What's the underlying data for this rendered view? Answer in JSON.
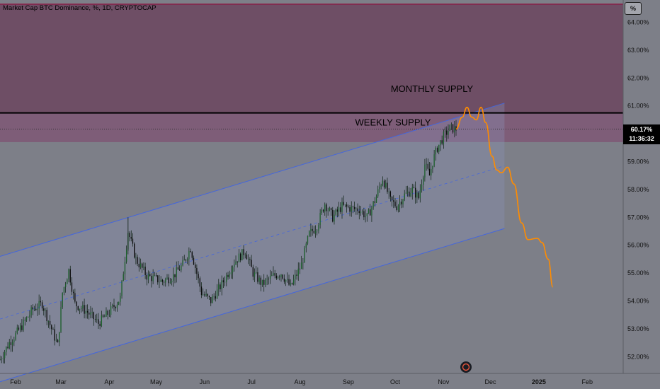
{
  "chart_data": {
    "type": "candlestick",
    "title": "Market Cap BTC Dominance, %, 1D, CRYPTOCAP",
    "unit_label": "%",
    "ylim": [
      51.4,
      64.8
    ],
    "y_ticks": [
      {
        "v": 64,
        "label": "64.00%"
      },
      {
        "v": 63,
        "label": "63.00%"
      },
      {
        "v": 62,
        "label": "62.00%"
      },
      {
        "v": 61,
        "label": "61.00%"
      },
      {
        "v": 60,
        "label": "60.00%"
      },
      {
        "v": 59,
        "label": "59.00%"
      },
      {
        "v": 58,
        "label": "58.00%"
      },
      {
        "v": 57,
        "label": "57.00%"
      },
      {
        "v": 56,
        "label": "56.00%"
      },
      {
        "v": 55,
        "label": "55.00%"
      },
      {
        "v": 54,
        "label": "54.00%"
      },
      {
        "v": 53,
        "label": "53.00%"
      },
      {
        "v": 52,
        "label": "52.00%"
      }
    ],
    "x_ticks": [
      "Feb",
      "Mar",
      "Apr",
      "May",
      "Jun",
      "Jul",
      "Aug",
      "Sep",
      "Oct",
      "Nov",
      "Dec",
      "2025",
      "Feb"
    ],
    "x_tick_dates": [
      "2024-02-01",
      "2024-03-01",
      "2024-04-01",
      "2024-05-01",
      "2024-06-01",
      "2024-07-01",
      "2024-08-01",
      "2024-09-01",
      "2024-10-01",
      "2024-11-01",
      "2024-12-01",
      "2025-01-01",
      "2025-02-01"
    ],
    "x_range": [
      "2024-01-22",
      "2025-02-24"
    ],
    "current_price": {
      "value": 60.17,
      "label": "60.17%",
      "countdown": "11:36:32"
    },
    "zones": [
      {
        "name": "MONTHLY SUPPLY",
        "from": 60.75,
        "to": 64.65,
        "color": "#6e4e65"
      },
      {
        "name": "WEEKLY SUPPLY",
        "from": 59.7,
        "to": 60.75,
        "color": "#7e5d78"
      }
    ],
    "horizontal_lines": [
      {
        "value": 60.75,
        "color": "#000000"
      },
      {
        "value": 64.65,
        "color": "#8e0f3a"
      }
    ],
    "channel": {
      "upper": [
        {
          "x": "2024-01-22",
          "y": 55.6
        },
        {
          "x": "2024-12-10",
          "y": 61.1
        }
      ],
      "lower": [
        {
          "x": "2024-01-22",
          "y": 51.1
        },
        {
          "x": "2024-12-10",
          "y": 56.6
        }
      ],
      "mid": [
        {
          "x": "2024-01-22",
          "y": 53.35
        },
        {
          "x": "2024-12-10",
          "y": 58.85
        }
      ],
      "color": "#4466dd"
    },
    "series": [
      {
        "points": [
          {
            "x": "2024-01-22",
            "y": 51.9
          },
          {
            "x": "2024-01-28",
            "y": 52.5
          },
          {
            "x": "2024-02-05",
            "y": 53.1
          },
          {
            "x": "2024-02-12",
            "y": 53.7
          },
          {
            "x": "2024-02-18",
            "y": 53.9
          },
          {
            "x": "2024-02-24",
            "y": 53.0
          },
          {
            "x": "2024-02-28",
            "y": 52.4
          },
          {
            "x": "2024-03-02",
            "y": 54.3
          },
          {
            "x": "2024-03-06",
            "y": 55.1
          },
          {
            "x": "2024-03-10",
            "y": 53.9
          },
          {
            "x": "2024-03-18",
            "y": 53.6
          },
          {
            "x": "2024-03-25",
            "y": 53.2
          },
          {
            "x": "2024-04-01",
            "y": 53.6
          },
          {
            "x": "2024-04-08",
            "y": 54.1
          },
          {
            "x": "2024-04-13",
            "y": 56.5
          },
          {
            "x": "2024-04-18",
            "y": 55.5
          },
          {
            "x": "2024-04-25",
            "y": 54.9
          },
          {
            "x": "2024-05-05",
            "y": 54.7
          },
          {
            "x": "2024-05-12",
            "y": 54.9
          },
          {
            "x": "2024-05-18",
            "y": 55.3
          },
          {
            "x": "2024-05-23",
            "y": 55.9
          },
          {
            "x": "2024-05-30",
            "y": 54.3
          },
          {
            "x": "2024-06-05",
            "y": 54.0
          },
          {
            "x": "2024-06-12",
            "y": 54.6
          },
          {
            "x": "2024-06-20",
            "y": 55.4
          },
          {
            "x": "2024-06-27",
            "y": 55.8
          },
          {
            "x": "2024-07-02",
            "y": 55.0
          },
          {
            "x": "2024-07-08",
            "y": 54.6
          },
          {
            "x": "2024-07-15",
            "y": 54.9
          },
          {
            "x": "2024-07-20",
            "y": 55.0
          },
          {
            "x": "2024-07-26",
            "y": 54.5
          },
          {
            "x": "2024-08-02",
            "y": 55.3
          },
          {
            "x": "2024-08-07",
            "y": 56.4
          },
          {
            "x": "2024-08-12",
            "y": 56.7
          },
          {
            "x": "2024-08-17",
            "y": 57.5
          },
          {
            "x": "2024-08-22",
            "y": 57.0
          },
          {
            "x": "2024-08-28",
            "y": 57.4
          },
          {
            "x": "2024-09-04",
            "y": 57.3
          },
          {
            "x": "2024-09-08",
            "y": 57.3
          },
          {
            "x": "2024-09-13",
            "y": 57.0
          },
          {
            "x": "2024-09-18",
            "y": 57.6
          },
          {
            "x": "2024-09-23",
            "y": 58.4
          },
          {
            "x": "2024-09-28",
            "y": 57.6
          },
          {
            "x": "2024-10-02",
            "y": 57.4
          },
          {
            "x": "2024-10-07",
            "y": 57.8
          },
          {
            "x": "2024-10-12",
            "y": 58.0
          },
          {
            "x": "2024-10-16",
            "y": 57.7
          },
          {
            "x": "2024-10-20",
            "y": 58.9
          },
          {
            "x": "2024-10-23",
            "y": 58.5
          },
          {
            "x": "2024-10-25",
            "y": 59.0
          },
          {
            "x": "2024-10-28",
            "y": 59.5
          },
          {
            "x": "2024-11-01",
            "y": 59.9
          },
          {
            "x": "2024-11-05",
            "y": 60.2
          },
          {
            "x": "2024-11-09",
            "y": 60.17
          }
        ]
      }
    ],
    "projection": {
      "color": "#ff8c00",
      "points": [
        {
          "x": "2024-11-09",
          "y": 60.17
        },
        {
          "x": "2024-11-13",
          "y": 60.6
        },
        {
          "x": "2024-11-16",
          "y": 60.95
        },
        {
          "x": "2024-11-19",
          "y": 60.6
        },
        {
          "x": "2024-11-22",
          "y": 60.5
        },
        {
          "x": "2024-11-25",
          "y": 60.95
        },
        {
          "x": "2024-11-28",
          "y": 60.4
        },
        {
          "x": "2024-12-02",
          "y": 59.2
        },
        {
          "x": "2024-12-05",
          "y": 58.7
        },
        {
          "x": "2024-12-08",
          "y": 58.6
        },
        {
          "x": "2024-12-12",
          "y": 58.8
        },
        {
          "x": "2024-12-16",
          "y": 58.2
        },
        {
          "x": "2024-12-21",
          "y": 56.8
        },
        {
          "x": "2024-12-25",
          "y": 56.2
        },
        {
          "x": "2024-12-31",
          "y": 56.25
        },
        {
          "x": "2025-01-03",
          "y": 56.1
        },
        {
          "x": "2025-01-07",
          "y": 55.5
        },
        {
          "x": "2025-01-10",
          "y": 54.5
        }
      ]
    },
    "grid": false,
    "legend": "none"
  }
}
